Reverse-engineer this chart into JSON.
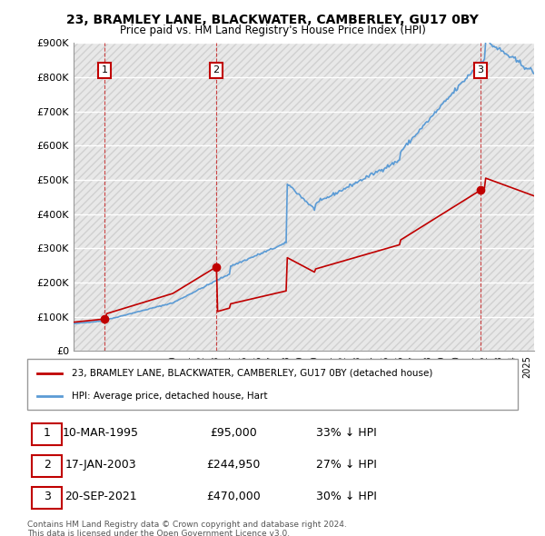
{
  "title": "23, BRAMLEY LANE, BLACKWATER, CAMBERLEY, GU17 0BY",
  "subtitle": "Price paid vs. HM Land Registry's House Price Index (HPI)",
  "sale_dates_num": [
    1995.19,
    2003.04,
    2021.72
  ],
  "sale_prices": [
    95000,
    244950,
    470000
  ],
  "sale_labels": [
    "1",
    "2",
    "3"
  ],
  "hpi_color": "#5b9bd5",
  "sale_color": "#c00000",
  "legend_entries": [
    "23, BRAMLEY LANE, BLACKWATER, CAMBERLEY, GU17 0BY (detached house)",
    "HPI: Average price, detached house, Hart"
  ],
  "table_rows": [
    [
      "1",
      "10-MAR-1995",
      "£95,000",
      "33% ↓ HPI"
    ],
    [
      "2",
      "17-JAN-2003",
      "£244,950",
      "27% ↓ HPI"
    ],
    [
      "3",
      "20-SEP-2021",
      "£470,000",
      "30% ↓ HPI"
    ]
  ],
  "footnote1": "Contains HM Land Registry data © Crown copyright and database right 2024.",
  "footnote2": "This data is licensed under the Open Government Licence v3.0.",
  "ylim": [
    0,
    900000
  ],
  "yticks": [
    0,
    100000,
    200000,
    300000,
    400000,
    500000,
    600000,
    700000,
    800000,
    900000
  ],
  "ytick_labels": [
    "£0",
    "£100K",
    "£200K",
    "£300K",
    "£400K",
    "£500K",
    "£600K",
    "£700K",
    "£800K",
    "£900K"
  ],
  "xlim_start": 1993,
  "xlim_end": 2025.5,
  "background_hatch_color": "#e8e8e8",
  "grid_color": "#ffffff",
  "plot_bg": "#f0f0f0"
}
